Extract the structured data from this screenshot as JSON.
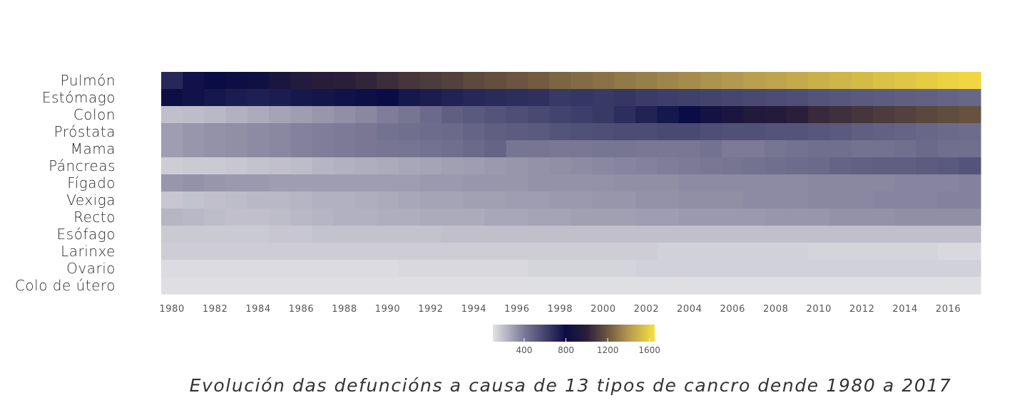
{
  "chart_data": {
    "type": "heatmap",
    "caption": "Evolución das defuncións a causa de 13 tipos de cancro dende 1980 a 2017",
    "rows": [
      "Pulmón",
      "Estómago",
      "Colon",
      "Próstata",
      "Mama",
      "Páncreas",
      "Fígado",
      "Vexiga",
      "Recto",
      "Esófago",
      "Larinxe",
      "Ovario",
      "Colo de útero"
    ],
    "years": [
      1980,
      1981,
      1982,
      1983,
      1984,
      1985,
      1986,
      1987,
      1988,
      1989,
      1990,
      1991,
      1992,
      1993,
      1994,
      1995,
      1996,
      1997,
      1998,
      1999,
      2000,
      2001,
      2002,
      2003,
      2004,
      2005,
      2006,
      2007,
      2008,
      2009,
      2010,
      2011,
      2012,
      2013,
      2014,
      2015,
      2016,
      2017
    ],
    "x_tick_labels": [
      "1980",
      "1982",
      "1984",
      "1986",
      "1988",
      "1990",
      "1992",
      "1994",
      "1996",
      "1998",
      "2000",
      "2002",
      "2004",
      "2006",
      "2008",
      "2010",
      "2012",
      "2014",
      "2016"
    ],
    "values": [
      [
        700,
        780,
        800,
        820,
        840,
        900,
        950,
        980,
        1000,
        1020,
        1050,
        1080,
        1100,
        1120,
        1150,
        1170,
        1190,
        1210,
        1240,
        1260,
        1280,
        1300,
        1320,
        1340,
        1360,
        1380,
        1400,
        1420,
        1440,
        1460,
        1480,
        1500,
        1520,
        1540,
        1560,
        1580,
        1600,
        1620
      ],
      [
        820,
        780,
        760,
        740,
        730,
        740,
        760,
        770,
        780,
        790,
        800,
        760,
        740,
        720,
        700,
        690,
        680,
        670,
        640,
        650,
        640,
        650,
        630,
        620,
        610,
        600,
        590,
        580,
        570,
        560,
        540,
        530,
        520,
        510,
        500,
        490,
        480,
        470
      ],
      [
        200,
        210,
        220,
        240,
        260,
        280,
        300,
        320,
        340,
        360,
        390,
        420,
        460,
        500,
        520,
        540,
        560,
        580,
        600,
        620,
        640,
        680,
        720,
        760,
        800,
        860,
        900,
        940,
        960,
        1000,
        1040,
        1060,
        1080,
        1100,
        1120,
        1140,
        1160,
        1180
      ],
      [
        300,
        320,
        330,
        340,
        350,
        360,
        380,
        390,
        400,
        410,
        430,
        440,
        450,
        460,
        480,
        500,
        510,
        520,
        540,
        550,
        560,
        570,
        570,
        580,
        580,
        560,
        550,
        550,
        540,
        540,
        530,
        520,
        500,
        490,
        480,
        470,
        460,
        450
      ],
      [
        300,
        320,
        330,
        340,
        350,
        360,
        380,
        390,
        400,
        410,
        420,
        420,
        430,
        440,
        460,
        480,
        420,
        420,
        410,
        410,
        420,
        420,
        410,
        410,
        410,
        430,
        400,
        400,
        420,
        430,
        440,
        440,
        430,
        430,
        440,
        460,
        440,
        440
      ],
      [
        160,
        170,
        170,
        180,
        190,
        200,
        210,
        230,
        240,
        250,
        260,
        270,
        280,
        290,
        300,
        310,
        320,
        330,
        340,
        350,
        360,
        370,
        380,
        390,
        400,
        410,
        420,
        430,
        440,
        450,
        460,
        480,
        490,
        500,
        500,
        510,
        520,
        540
      ],
      [
        320,
        330,
        320,
        310,
        310,
        300,
        300,
        300,
        300,
        300,
        300,
        300,
        310,
        310,
        320,
        320,
        320,
        330,
        330,
        330,
        330,
        340,
        340,
        340,
        350,
        350,
        350,
        350,
        350,
        350,
        360,
        360,
        360,
        360,
        370,
        370,
        370,
        380
      ],
      [
        180,
        190,
        200,
        210,
        220,
        220,
        230,
        240,
        240,
        250,
        260,
        270,
        280,
        280,
        290,
        290,
        300,
        300,
        310,
        310,
        320,
        320,
        330,
        330,
        340,
        340,
        340,
        350,
        350,
        350,
        360,
        360,
        360,
        370,
        370,
        370,
        380,
        380
      ],
      [
        230,
        220,
        210,
        200,
        200,
        210,
        220,
        230,
        240,
        240,
        250,
        250,
        260,
        260,
        260,
        270,
        270,
        280,
        280,
        290,
        290,
        290,
        300,
        300,
        310,
        310,
        310,
        310,
        320,
        320,
        320,
        330,
        330,
        330,
        340,
        340,
        340,
        340
      ],
      [
        170,
        170,
        170,
        170,
        170,
        180,
        180,
        190,
        190,
        190,
        190,
        190,
        190,
        200,
        200,
        200,
        200,
        200,
        200,
        200,
        200,
        200,
        200,
        200,
        200,
        200,
        200,
        200,
        200,
        200,
        200,
        200,
        200,
        200,
        200,
        200,
        200,
        200
      ],
      [
        160,
        160,
        160,
        160,
        160,
        160,
        160,
        160,
        160,
        160,
        160,
        160,
        160,
        160,
        160,
        160,
        160,
        160,
        160,
        160,
        160,
        160,
        160,
        150,
        150,
        150,
        150,
        150,
        150,
        150,
        140,
        140,
        140,
        140,
        140,
        140,
        130,
        130
      ],
      [
        120,
        120,
        120,
        120,
        120,
        120,
        120,
        120,
        120,
        120,
        120,
        130,
        130,
        130,
        130,
        130,
        130,
        140,
        140,
        140,
        140,
        140,
        150,
        150,
        150,
        150,
        150,
        150,
        150,
        150,
        150,
        150,
        150,
        150,
        150,
        150,
        150,
        150
      ],
      [
        110,
        110,
        110,
        110,
        110,
        110,
        110,
        110,
        110,
        110,
        110,
        110,
        110,
        110,
        110,
        110,
        110,
        110,
        110,
        110,
        110,
        110,
        110,
        110,
        110,
        110,
        110,
        110,
        110,
        110,
        110,
        110,
        110,
        110,
        110,
        110,
        110,
        110
      ]
    ],
    "colorscale": {
      "min": 100,
      "max": 1650,
      "stops": [
        {
          "v": 100,
          "color": "#e2e2e6"
        },
        {
          "v": 400,
          "color": "#7c7a96"
        },
        {
          "v": 800,
          "color": "#0a0d45"
        },
        {
          "v": 1000,
          "color": "#2a1f3a"
        },
        {
          "v": 1200,
          "color": "#6e5840"
        },
        {
          "v": 1400,
          "color": "#b39950"
        },
        {
          "v": 1650,
          "color": "#f8e040"
        }
      ],
      "legend_ticks": [
        400,
        800,
        1200,
        1600
      ]
    }
  }
}
